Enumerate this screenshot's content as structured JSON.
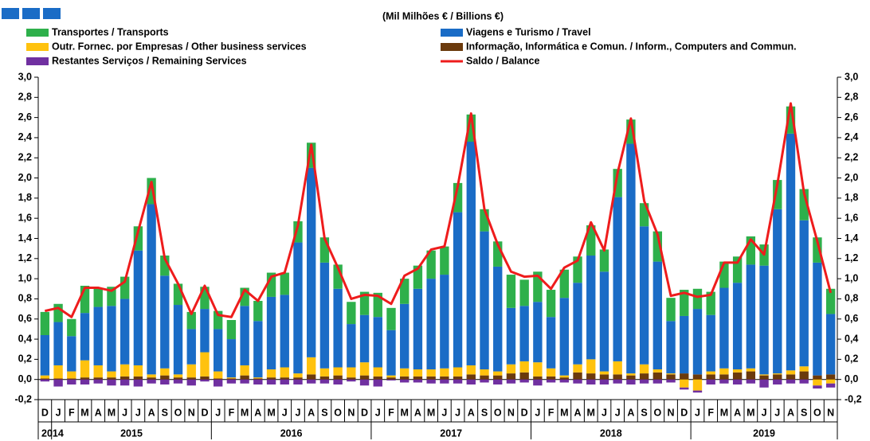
{
  "chart_data": {
    "type": "bar",
    "stacked": true,
    "title": "(Mil Milhões € / Billions €)",
    "categories": [
      "D",
      "J",
      "F",
      "M",
      "A",
      "M",
      "J",
      "J",
      "A",
      "S",
      "O",
      "N",
      "D",
      "J",
      "F",
      "M",
      "A",
      "M",
      "J",
      "J",
      "A",
      "S",
      "O",
      "N",
      "D",
      "J",
      "F",
      "M",
      "A",
      "M",
      "J",
      "J",
      "A",
      "S",
      "O",
      "N",
      "D",
      "J",
      "F",
      "M",
      "A",
      "M",
      "J",
      "J",
      "A",
      "S",
      "O",
      "N",
      "D",
      "J",
      "F",
      "M",
      "A",
      "M",
      "J",
      "J",
      "A",
      "S",
      "O",
      "N"
    ],
    "years": [
      "2014",
      "2015",
      "2016",
      "2017",
      "2018",
      "2019"
    ],
    "series": [
      {
        "name": "Transportes / Transports",
        "color": "#2eb04b",
        "values": [
          0.23,
          0.18,
          0.17,
          0.27,
          0.19,
          0.19,
          0.22,
          0.24,
          0.26,
          0.2,
          0.21,
          0.17,
          0.22,
          0.18,
          0.19,
          0.18,
          0.2,
          0.24,
          0.22,
          0.21,
          0.25,
          0.25,
          0.24,
          0.22,
          0.23,
          0.24,
          0.22,
          0.25,
          0.23,
          0.28,
          0.28,
          0.29,
          0.27,
          0.22,
          0.25,
          0.33,
          0.26,
          0.3,
          0.27,
          0.28,
          0.26,
          0.3,
          0.22,
          0.28,
          0.24,
          0.23,
          0.3,
          0.23,
          0.26,
          0.2,
          0.23,
          0.26,
          0.26,
          0.28,
          0.21,
          0.29,
          0.27,
          0.31,
          0.25,
          0.25
        ]
      },
      {
        "name": "Viagens e Turismo / Travel",
        "color": "#1a6cc6",
        "values": [
          0.4,
          0.43,
          0.35,
          0.47,
          0.58,
          0.65,
          0.65,
          1.14,
          1.69,
          0.92,
          0.69,
          0.35,
          0.43,
          0.42,
          0.38,
          0.59,
          0.56,
          0.72,
          0.72,
          1.3,
          1.88,
          1.05,
          0.78,
          0.43,
          0.47,
          0.5,
          0.45,
          0.64,
          0.8,
          0.9,
          0.93,
          1.54,
          2.22,
          1.37,
          1.04,
          0.56,
          0.55,
          0.6,
          0.51,
          0.77,
          0.81,
          1.03,
          0.99,
          1.63,
          2.28,
          1.37,
          1.07,
          0.52,
          0.57,
          0.65,
          0.56,
          0.8,
          0.86,
          1.03,
          1.08,
          1.63,
          2.35,
          1.45,
          1.12,
          0.6
        ]
      },
      {
        "name": "Outr. Fornec. por Empresas  / Other business services",
        "color": "#ffc20e",
        "values": [
          0.03,
          0.13,
          0.07,
          0.17,
          0.12,
          0.06,
          0.12,
          0.11,
          0.03,
          0.07,
          0.03,
          0.13,
          0.24,
          0.07,
          0.01,
          0.1,
          0.01,
          0.08,
          0.1,
          0.04,
          0.17,
          0.08,
          0.08,
          0.1,
          0.13,
          0.09,
          0.02,
          0.08,
          0.07,
          0.07,
          0.08,
          0.09,
          0.09,
          0.06,
          0.04,
          0.09,
          0.11,
          0.14,
          0.08,
          0.02,
          0.08,
          0.14,
          0.03,
          0.13,
          0.02,
          0.09,
          0.03,
          0.01,
          -0.08,
          -0.11,
          0.03,
          0.06,
          0.03,
          0.03,
          0.01,
          0.01,
          0.04,
          0.05,
          -0.06,
          -0.04
        ]
      },
      {
        "name": "Informação, Informática e Comun. / Inform., Computers and Commun.",
        "color": "#6b3a0c",
        "values": [
          0.01,
          0.01,
          0.01,
          0.02,
          0.02,
          0.02,
          0.03,
          0.03,
          0.02,
          0.04,
          0.02,
          0.02,
          0.03,
          0.01,
          0.01,
          0.04,
          0.01,
          0.02,
          0.02,
          0.02,
          0.05,
          0.03,
          0.04,
          0.02,
          0.04,
          0.03,
          0.02,
          0.03,
          0.03,
          0.03,
          0.03,
          0.03,
          0.05,
          0.04,
          0.04,
          0.06,
          0.07,
          0.03,
          0.03,
          0.02,
          0.07,
          0.06,
          0.05,
          0.05,
          0.04,
          0.06,
          0.07,
          0.05,
          0.06,
          0.05,
          0.05,
          0.05,
          0.07,
          0.08,
          0.04,
          0.05,
          0.05,
          0.08,
          0.04,
          0.05
        ]
      },
      {
        "name": "Restantes Serviços / Remaining Services",
        "color": "#7030a0",
        "values": [
          -0.02,
          -0.07,
          -0.05,
          -0.05,
          -0.04,
          -0.06,
          -0.06,
          -0.07,
          -0.04,
          -0.05,
          -0.04,
          -0.06,
          -0.02,
          -0.07,
          -0.04,
          -0.04,
          -0.05,
          -0.05,
          -0.05,
          -0.05,
          -0.04,
          -0.04,
          -0.05,
          -0.02,
          -0.06,
          -0.07,
          -0.01,
          -0.03,
          -0.03,
          -0.04,
          -0.04,
          -0.04,
          -0.05,
          -0.03,
          -0.05,
          -0.04,
          -0.03,
          -0.06,
          -0.03,
          -0.03,
          -0.04,
          -0.05,
          -0.05,
          -0.04,
          -0.05,
          -0.04,
          -0.04,
          -0.03,
          -0.02,
          -0.02,
          -0.05,
          -0.04,
          -0.05,
          -0.04,
          -0.08,
          -0.05,
          -0.04,
          -0.04,
          -0.03,
          -0.04
        ]
      }
    ],
    "line": {
      "name": "Saldo / Balance",
      "color": "#ee1c1c",
      "values": [
        0.68,
        0.71,
        0.62,
        0.91,
        0.91,
        0.88,
        0.97,
        1.47,
        1.96,
        1.2,
        0.95,
        0.65,
        0.93,
        0.64,
        0.62,
        0.89,
        0.78,
        1.02,
        1.06,
        1.53,
        2.33,
        1.4,
        1.11,
        0.8,
        0.84,
        0.83,
        0.75,
        1.03,
        1.1,
        1.29,
        1.32,
        1.92,
        2.64,
        1.69,
        1.34,
        1.07,
        1.02,
        1.03,
        0.9,
        1.11,
        1.18,
        1.56,
        1.28,
        2.05,
        2.59,
        1.77,
        1.44,
        0.83,
        0.86,
        0.82,
        0.84,
        1.16,
        1.16,
        1.39,
        1.24,
        1.94,
        2.74,
        1.85,
        1.37,
        0.86
      ]
    },
    "ylim": [
      -0.2,
      3.0
    ],
    "yticks": [
      {
        "value": -0.2,
        "label": "-0,2"
      },
      {
        "value": 0,
        "label": "0,0"
      },
      {
        "value": 0.2,
        "label": "0,2"
      },
      {
        "value": 0.4,
        "label": "0,4"
      },
      {
        "value": 0.6,
        "label": "0,6"
      },
      {
        "value": 0.8,
        "label": "0,8"
      },
      {
        "value": 1.0,
        "label": "1,0"
      },
      {
        "value": 1.2,
        "label": "1,2"
      },
      {
        "value": 1.4,
        "label": "1,4"
      },
      {
        "value": 1.6,
        "label": "1,6"
      },
      {
        "value": 1.8,
        "label": "1,8"
      },
      {
        "value": 2.0,
        "label": "2,0"
      },
      {
        "value": 2.2,
        "label": "2,2"
      },
      {
        "value": 2.4,
        "label": "2,4"
      },
      {
        "value": 2.6,
        "label": "2,6"
      },
      {
        "value": 2.8,
        "label": "2,8"
      },
      {
        "value": 3.0,
        "label": "3,0"
      }
    ]
  }
}
